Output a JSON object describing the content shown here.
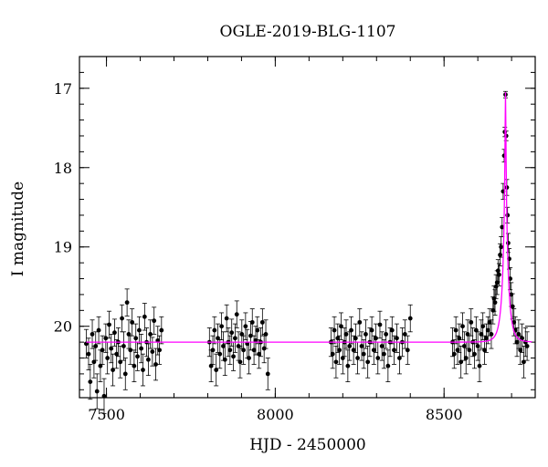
{
  "chart_data": {
    "type": "scatter",
    "title": "OGLE-2019-BLG-1107",
    "xlabel": "HJD - 2450000",
    "ylabel": "I magnitude",
    "xlim": [
      7420,
      8770
    ],
    "ylim": [
      20.9,
      16.6
    ],
    "y_inverted": true,
    "x_ticks": [
      7500,
      8000,
      8500
    ],
    "y_ticks": [
      17,
      18,
      19,
      20
    ],
    "x_minor_step": 100,
    "y_minor_step": 0.2,
    "grid": false,
    "colors": {
      "data": "#000000",
      "model": "#ff00ff"
    },
    "series": [
      {
        "points": [
          [
            7440,
            20.22,
            0.18
          ],
          [
            7447,
            20.35,
            0.2
          ],
          [
            7452,
            20.7,
            0.22
          ],
          [
            7458,
            20.1,
            0.18
          ],
          [
            7463,
            20.45,
            0.2
          ],
          [
            7468,
            20.25,
            0.18
          ],
          [
            7472,
            20.82,
            0.22
          ],
          [
            7477,
            20.05,
            0.17
          ],
          [
            7482,
            20.5,
            0.2
          ],
          [
            7488,
            20.3,
            0.18
          ],
          [
            7493,
            20.88,
            0.22
          ],
          [
            7498,
            20.15,
            0.18
          ],
          [
            7503,
            20.4,
            0.2
          ],
          [
            7508,
            19.98,
            0.17
          ],
          [
            7514,
            20.28,
            0.18
          ],
          [
            7519,
            20.55,
            0.2
          ],
          [
            7524,
            20.08,
            0.17
          ],
          [
            7530,
            20.35,
            0.18
          ],
          [
            7535,
            20.2,
            0.18
          ],
          [
            7541,
            20.45,
            0.2
          ],
          [
            7546,
            19.9,
            0.17
          ],
          [
            7551,
            20.25,
            0.18
          ],
          [
            7556,
            20.6,
            0.2
          ],
          [
            7561,
            19.7,
            0.17
          ],
          [
            7566,
            20.1,
            0.18
          ],
          [
            7571,
            20.3,
            0.18
          ],
          [
            7576,
            19.95,
            0.17
          ],
          [
            7582,
            20.5,
            0.2
          ],
          [
            7587,
            20.15,
            0.18
          ],
          [
            7592,
            20.38,
            0.18
          ],
          [
            7597,
            20.05,
            0.17
          ],
          [
            7603,
            20.28,
            0.18
          ],
          [
            7608,
            20.55,
            0.2
          ],
          [
            7613,
            19.88,
            0.17
          ],
          [
            7619,
            20.2,
            0.18
          ],
          [
            7624,
            20.42,
            0.2
          ],
          [
            7630,
            20.1,
            0.18
          ],
          [
            7636,
            20.32,
            0.18
          ],
          [
            7641,
            19.93,
            0.17
          ],
          [
            7646,
            20.48,
            0.2
          ],
          [
            7652,
            20.18,
            0.18
          ],
          [
            7657,
            20.3,
            0.18
          ],
          [
            7663,
            20.05,
            0.17
          ],
          [
            7805,
            20.2,
            0.18
          ],
          [
            7810,
            20.5,
            0.2
          ],
          [
            7815,
            20.3,
            0.18
          ],
          [
            7820,
            20.05,
            0.17
          ],
          [
            7825,
            20.55,
            0.2
          ],
          [
            7830,
            20.15,
            0.18
          ],
          [
            7836,
            20.35,
            0.18
          ],
          [
            7841,
            20.0,
            0.17
          ],
          [
            7846,
            20.25,
            0.18
          ],
          [
            7851,
            20.42,
            0.2
          ],
          [
            7856,
            19.9,
            0.17
          ],
          [
            7861,
            20.2,
            0.18
          ],
          [
            7866,
            20.3,
            0.18
          ],
          [
            7871,
            20.08,
            0.17
          ],
          [
            7876,
            20.38,
            0.18
          ],
          [
            7881,
            20.15,
            0.18
          ],
          [
            7886,
            19.85,
            0.17
          ],
          [
            7891,
            20.25,
            0.18
          ],
          [
            7896,
            20.45,
            0.2
          ],
          [
            7901,
            20.1,
            0.18
          ],
          [
            7906,
            20.3,
            0.18
          ],
          [
            7912,
            20.0,
            0.17
          ],
          [
            7917,
            20.22,
            0.18
          ],
          [
            7922,
            20.4,
            0.2
          ],
          [
            7927,
            20.12,
            0.18
          ],
          [
            7932,
            19.95,
            0.17
          ],
          [
            7937,
            20.3,
            0.18
          ],
          [
            7942,
            20.18,
            0.18
          ],
          [
            7947,
            20.05,
            0.17
          ],
          [
            7952,
            20.35,
            0.18
          ],
          [
            7957,
            20.2,
            0.18
          ],
          [
            7962,
            19.95,
            0.17
          ],
          [
            7967,
            20.28,
            0.18
          ],
          [
            7972,
            20.1,
            0.18
          ],
          [
            7978,
            20.6,
            0.2
          ],
          [
            8165,
            20.2,
            0.18
          ],
          [
            8170,
            20.35,
            0.18
          ],
          [
            8175,
            20.05,
            0.17
          ],
          [
            8180,
            20.45,
            0.2
          ],
          [
            8185,
            20.15,
            0.18
          ],
          [
            8190,
            20.3,
            0.18
          ],
          [
            8195,
            20.0,
            0.17
          ],
          [
            8200,
            20.4,
            0.2
          ],
          [
            8205,
            20.2,
            0.18
          ],
          [
            8210,
            20.1,
            0.18
          ],
          [
            8215,
            20.5,
            0.2
          ],
          [
            8220,
            20.25,
            0.18
          ],
          [
            8225,
            20.05,
            0.17
          ],
          [
            8232,
            20.3,
            0.18
          ],
          [
            8238,
            20.15,
            0.18
          ],
          [
            8244,
            20.4,
            0.2
          ],
          [
            8250,
            19.95,
            0.17
          ],
          [
            8256,
            20.25,
            0.18
          ],
          [
            8262,
            20.35,
            0.18
          ],
          [
            8268,
            20.1,
            0.18
          ],
          [
            8274,
            20.45,
            0.2
          ],
          [
            8280,
            20.2,
            0.18
          ],
          [
            8286,
            20.05,
            0.17
          ],
          [
            8292,
            20.3,
            0.18
          ],
          [
            8298,
            20.15,
            0.18
          ],
          [
            8304,
            20.4,
            0.2
          ],
          [
            8310,
            19.98,
            0.17
          ],
          [
            8316,
            20.25,
            0.18
          ],
          [
            8322,
            20.35,
            0.18
          ],
          [
            8328,
            20.1,
            0.18
          ],
          [
            8334,
            20.5,
            0.2
          ],
          [
            8340,
            20.2,
            0.18
          ],
          [
            8346,
            20.05,
            0.17
          ],
          [
            8352,
            20.3,
            0.18
          ],
          [
            8360,
            20.15,
            0.18
          ],
          [
            8368,
            20.4,
            0.2
          ],
          [
            8376,
            20.2,
            0.18
          ],
          [
            8384,
            20.1,
            0.18
          ],
          [
            8392,
            20.3,
            0.18
          ],
          [
            8400,
            19.9,
            0.17
          ],
          [
            8525,
            20.2,
            0.18
          ],
          [
            8530,
            20.35,
            0.18
          ],
          [
            8535,
            20.05,
            0.17
          ],
          [
            8540,
            20.3,
            0.18
          ],
          [
            8545,
            20.15,
            0.18
          ],
          [
            8550,
            20.45,
            0.2
          ],
          [
            8555,
            20.0,
            0.17
          ],
          [
            8560,
            20.25,
            0.18
          ],
          [
            8565,
            20.4,
            0.2
          ],
          [
            8570,
            20.1,
            0.18
          ],
          [
            8575,
            20.3,
            0.18
          ],
          [
            8580,
            19.95,
            0.17
          ],
          [
            8585,
            20.2,
            0.18
          ],
          [
            8590,
            20.35,
            0.18
          ],
          [
            8595,
            20.05,
            0.17
          ],
          [
            8600,
            20.25,
            0.18
          ],
          [
            8605,
            20.5,
            0.2
          ],
          [
            8610,
            20.1,
            0.18
          ],
          [
            8615,
            20.0,
            0.17
          ],
          [
            8620,
            20.3,
            0.18
          ],
          [
            8625,
            20.15,
            0.18
          ],
          [
            8630,
            20.05,
            0.17
          ],
          [
            8635,
            19.95,
            0.17
          ],
          [
            8640,
            20.1,
            0.18
          ],
          [
            8645,
            19.8,
            0.17
          ],
          [
            8648,
            19.65,
            0.16
          ],
          [
            8651,
            19.7,
            0.16
          ],
          [
            8654,
            19.5,
            0.15
          ],
          [
            8657,
            19.45,
            0.15
          ],
          [
            8660,
            19.3,
            0.14
          ],
          [
            8663,
            19.35,
            0.14
          ],
          [
            8666,
            19.1,
            0.14
          ],
          [
            8669,
            19.0,
            0.13
          ],
          [
            8672,
            18.75,
            0.12
          ],
          [
            8675,
            18.3,
            0.1
          ],
          [
            8678,
            17.85,
            0.08
          ],
          [
            8680,
            17.55,
            0.06
          ],
          [
            8682,
            17.08,
            0.04
          ],
          [
            8684,
            17.6,
            0.06
          ],
          [
            8686,
            18.25,
            0.1
          ],
          [
            8688,
            18.6,
            0.1
          ],
          [
            8690,
            18.95,
            0.12
          ],
          [
            8693,
            19.15,
            0.13
          ],
          [
            8696,
            19.4,
            0.14
          ],
          [
            8699,
            19.6,
            0.15
          ],
          [
            8703,
            19.75,
            0.16
          ],
          [
            8707,
            19.95,
            0.17
          ],
          [
            8711,
            20.05,
            0.17
          ],
          [
            8716,
            20.2,
            0.18
          ],
          [
            8721,
            20.1,
            0.18
          ],
          [
            8726,
            20.3,
            0.18
          ],
          [
            8731,
            20.15,
            0.18
          ],
          [
            8736,
            20.45,
            0.2
          ],
          [
            8741,
            20.2,
            0.18
          ],
          [
            8746,
            20.25,
            0.18
          ]
        ]
      }
    ],
    "model": {
      "baseline": 20.2,
      "peak_mag": 17.05,
      "t0": 8682,
      "tE": 17.0,
      "range": [
        7440,
        8760
      ]
    }
  }
}
